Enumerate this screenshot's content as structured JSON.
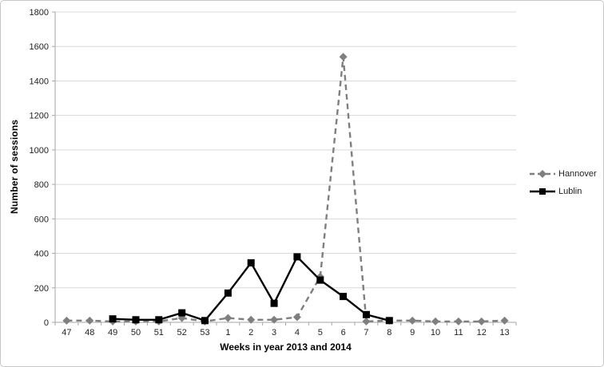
{
  "chart_data": {
    "type": "line",
    "title": "",
    "xlabel": "Weeks in year 2013 and 2014",
    "ylabel": "Number of sessions",
    "categories": [
      "47",
      "48",
      "49",
      "50",
      "51",
      "52",
      "53",
      "1",
      "2",
      "3",
      "4",
      "5",
      "6",
      "7",
      "8",
      "9",
      "10",
      "11",
      "12",
      "13"
    ],
    "ylim": [
      0,
      1800
    ],
    "ytick_step": 200,
    "grid": true,
    "legend_position": "right",
    "series": [
      {
        "name": "Hannover",
        "color": "#7f7f7f",
        "marker": "diamond",
        "line_style": "dashed",
        "values": [
          10,
          10,
          5,
          5,
          5,
          25,
          5,
          25,
          15,
          15,
          30,
          265,
          1540,
          5,
          10,
          10,
          5,
          5,
          5,
          10
        ]
      },
      {
        "name": "Lublin",
        "color": "#000000",
        "marker": "square",
        "line_style": "solid",
        "values": [
          null,
          null,
          20,
          15,
          15,
          55,
          10,
          170,
          345,
          110,
          380,
          245,
          150,
          45,
          10,
          null,
          null,
          null,
          null,
          null
        ]
      }
    ],
    "colors": {
      "grid": "#d9d9d9",
      "axis": "#a6a6a6",
      "tick_text": "#1f1f1f",
      "background": "#ffffff"
    }
  }
}
